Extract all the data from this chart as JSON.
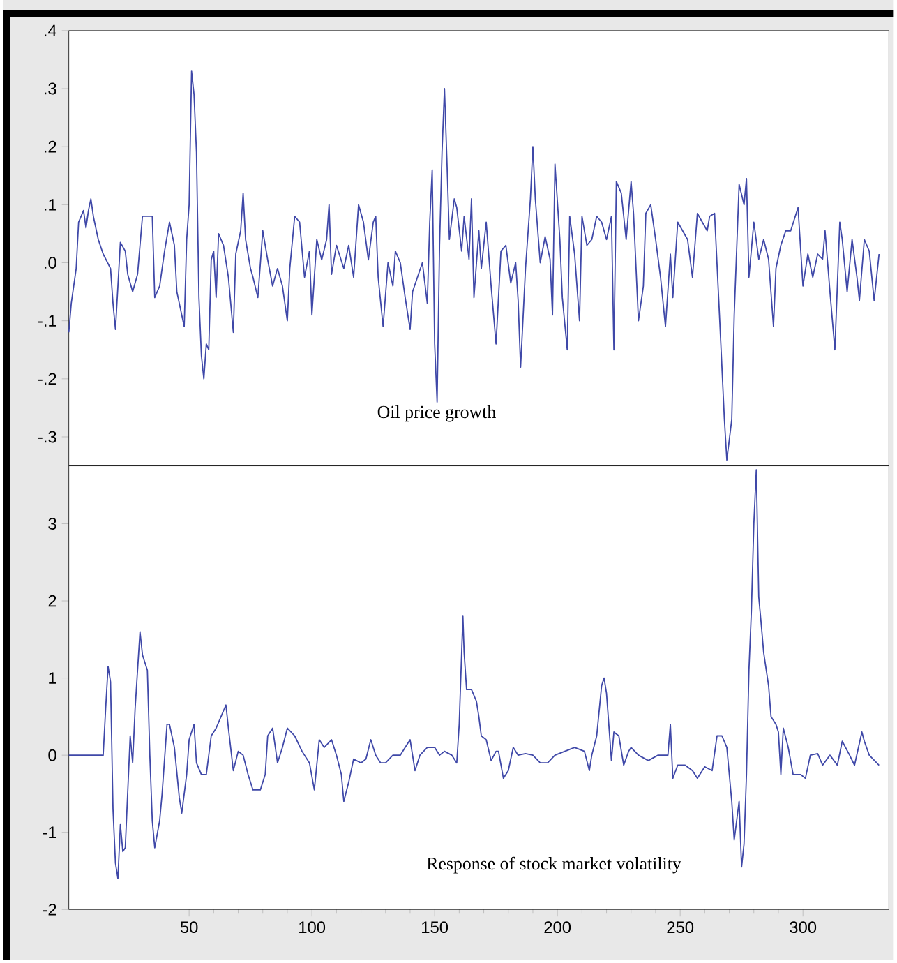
{
  "chart_data": [
    {
      "type": "line",
      "xlim": [
        1,
        335
      ],
      "ylim": [
        -0.35,
        0.4
      ],
      "tick_labels": "y",
      "yticks": [
        {
          "value": 0.4,
          "label": ".4"
        },
        {
          "value": 0.3,
          "label": ".3"
        },
        {
          "value": 0.2,
          "label": ".2"
        },
        {
          "value": 0.1,
          "label": ".1"
        },
        {
          "value": 0.0,
          "label": ".0"
        },
        {
          "value": -0.1,
          "label": "-.1"
        },
        {
          "value": -0.2,
          "label": "-.2"
        },
        {
          "value": -0.3,
          "label": "-.3"
        }
      ],
      "x": [
        1,
        2,
        4,
        5,
        7,
        8,
        9,
        10,
        11,
        13,
        15,
        18,
        19,
        20,
        21,
        22,
        24,
        25,
        27,
        29,
        31,
        33,
        35,
        36,
        38,
        40,
        42,
        44,
        45,
        48,
        49,
        50,
        51,
        52,
        53,
        54,
        55,
        56,
        57,
        58,
        59,
        60,
        61,
        62,
        64,
        66,
        68,
        69,
        71,
        72,
        73,
        75,
        76,
        78,
        80,
        82,
        84,
        86,
        88,
        90,
        91,
        93,
        95,
        97,
        99,
        100,
        102,
        104,
        106,
        107,
        108,
        110,
        113,
        115,
        117,
        119,
        121,
        123,
        125,
        126,
        127,
        129,
        131,
        133,
        134,
        136,
        138,
        140,
        141,
        143,
        145,
        147,
        148,
        149,
        150,
        151,
        152,
        153,
        154,
        155,
        156,
        158,
        159,
        161,
        162,
        164,
        165,
        166,
        168,
        169,
        171,
        173,
        175,
        177,
        179,
        181,
        183,
        184,
        185,
        187,
        189,
        190,
        191,
        193,
        195,
        197,
        198,
        199,
        201,
        202,
        204,
        205,
        207,
        209,
        210,
        212,
        214,
        216,
        218,
        220,
        222,
        223,
        224,
        226,
        228,
        230,
        231,
        233,
        235,
        236,
        238,
        240,
        242,
        244,
        246,
        247,
        249,
        251,
        253,
        255,
        257,
        259,
        261,
        262,
        264,
        266,
        268,
        269,
        271,
        272,
        274,
        276,
        277,
        278,
        280,
        282,
        284,
        286,
        288,
        289,
        291,
        293,
        295,
        298,
        300,
        302,
        304,
        306,
        308,
        309,
        311,
        313,
        315,
        316,
        318,
        320,
        322,
        323,
        325,
        327,
        329,
        331
      ],
      "series": [
        {
          "name": "Oil price growth",
          "color": "#3f48a8",
          "values": [
            -0.12,
            -0.07,
            -0.01,
            0.07,
            0.09,
            0.06,
            0.09,
            0.11,
            0.08,
            0.04,
            0.015,
            -0.01,
            -0.07,
            -0.115,
            -0.04,
            0.035,
            0.02,
            -0.02,
            -0.05,
            -0.02,
            0.08,
            0.08,
            0.08,
            -0.06,
            -0.04,
            0.02,
            0.07,
            0.03,
            -0.05,
            -0.11,
            0.04,
            0.1,
            0.33,
            0.29,
            0.19,
            -0.06,
            -0.16,
            -0.2,
            -0.14,
            -0.15,
            0.005,
            0.02,
            -0.06,
            0.05,
            0.03,
            -0.025,
            -0.12,
            0.015,
            0.055,
            0.12,
            0.04,
            -0.01,
            -0.025,
            -0.06,
            0.055,
            0.005,
            -0.04,
            -0.01,
            -0.04,
            -0.1,
            -0.01,
            0.08,
            0.07,
            -0.025,
            0.02,
            -0.09,
            0.04,
            0.005,
            0.04,
            0.1,
            -0.02,
            0.03,
            -0.01,
            0.03,
            -0.025,
            0.1,
            0.07,
            0.005,
            0.07,
            0.08,
            -0.025,
            -0.11,
            0.0,
            -0.04,
            0.02,
            0.0,
            -0.06,
            -0.115,
            -0.05,
            -0.025,
            0.0,
            -0.07,
            0.07,
            0.16,
            -0.14,
            -0.24,
            0.03,
            0.19,
            0.3,
            0.175,
            0.04,
            0.11,
            0.095,
            0.02,
            0.08,
            0.006,
            0.11,
            -0.06,
            0.055,
            -0.01,
            0.07,
            -0.04,
            -0.14,
            0.02,
            0.03,
            -0.035,
            0.0,
            -0.065,
            -0.18,
            -0.01,
            0.11,
            0.2,
            0.11,
            0.0,
            0.045,
            0.006,
            -0.09,
            0.17,
            0.04,
            -0.06,
            -0.15,
            0.08,
            0.015,
            -0.1,
            0.08,
            0.03,
            0.04,
            0.08,
            0.07,
            0.04,
            0.08,
            -0.15,
            0.14,
            0.12,
            0.04,
            0.14,
            0.085,
            -0.1,
            -0.04,
            0.085,
            0.1,
            0.04,
            -0.025,
            -0.11,
            0.015,
            -0.06,
            0.07,
            0.055,
            0.04,
            -0.025,
            0.085,
            0.07,
            0.055,
            0.08,
            0.085,
            -0.09,
            -0.27,
            -0.34,
            -0.27,
            -0.09,
            0.135,
            0.1,
            0.145,
            -0.025,
            0.07,
            0.006,
            0.04,
            0.006,
            -0.11,
            -0.01,
            0.03,
            0.055,
            0.055,
            0.095,
            -0.04,
            0.015,
            -0.025,
            0.015,
            0.006,
            0.055,
            -0.05,
            -0.15,
            0.07,
            0.04,
            -0.05,
            0.04,
            -0.025,
            -0.065,
            0.04,
            0.02,
            -0.065,
            0.015
          ]
        }
      ]
    },
    {
      "type": "line",
      "xlim": [
        1,
        335
      ],
      "ylim": [
        -2,
        3.75
      ],
      "xticks": [
        50,
        100,
        150,
        200,
        250,
        300
      ],
      "yticks": [
        -2,
        -1,
        0,
        1,
        2,
        3
      ],
      "x": [
        1,
        15,
        16,
        17,
        18,
        19,
        20,
        21,
        22,
        23,
        24,
        26,
        27,
        28,
        30,
        31,
        33,
        34,
        35,
        36,
        38,
        39,
        41,
        42,
        44,
        46,
        47,
        49,
        50,
        52,
        53,
        55,
        57,
        59,
        61,
        63,
        65,
        66,
        68,
        70,
        72,
        74,
        76,
        79,
        81,
        82,
        84,
        86,
        88,
        90,
        93,
        96,
        99,
        101,
        103,
        105,
        108,
        110,
        112,
        113,
        115,
        117,
        120,
        122,
        124,
        126,
        128,
        130,
        133,
        136,
        138,
        140,
        142,
        144,
        147,
        150,
        152,
        154,
        157,
        159,
        160,
        161,
        161.5,
        162,
        163,
        165,
        167,
        168,
        169,
        171,
        173,
        175,
        176,
        178,
        180,
        182,
        184,
        187,
        190,
        193,
        196,
        199,
        203,
        207,
        211,
        213,
        214,
        216,
        218,
        219,
        220,
        222,
        223,
        225,
        227,
        229,
        230,
        233,
        237,
        241,
        245,
        246,
        247,
        249,
        252,
        255,
        257,
        260,
        263,
        265,
        267,
        269,
        271,
        272,
        274,
        275,
        276,
        277,
        278,
        279,
        280,
        281,
        282,
        283,
        284,
        286,
        287,
        289,
        290,
        291,
        292,
        294,
        296,
        299,
        301,
        303,
        306,
        308,
        311,
        314,
        316,
        319,
        321,
        324,
        325,
        327,
        331
      ],
      "series": [
        {
          "name": "Response of stock market volatility",
          "color": "#3f48a8",
          "values": [
            0,
            0,
            0.6,
            1.15,
            0.95,
            -0.7,
            -1.4,
            -1.6,
            -0.9,
            -1.25,
            -1.2,
            0.25,
            -0.1,
            0.6,
            1.6,
            1.3,
            1.1,
            0,
            -0.85,
            -1.2,
            -0.85,
            -0.5,
            0.4,
            0.4,
            0.1,
            -0.55,
            -0.75,
            -0.25,
            0.2,
            0.4,
            -0.1,
            -0.25,
            -0.25,
            0.25,
            0.35,
            0.5,
            0.65,
            0.35,
            -0.2,
            0.05,
            0,
            -0.25,
            -0.45,
            -0.45,
            -0.25,
            0.25,
            0.35,
            -0.1,
            0.1,
            0.35,
            0.25,
            0.05,
            -0.1,
            -0.45,
            0.2,
            0.1,
            0.2,
            0,
            -0.25,
            -0.6,
            -0.35,
            -0.05,
            -0.1,
            -0.05,
            0.2,
            0,
            -0.1,
            -0.1,
            0,
            0,
            0.1,
            0.2,
            -0.2,
            0,
            0.1,
            0.1,
            0,
            0.05,
            0,
            -0.1,
            0.4,
            1.33,
            1.8,
            1.33,
            0.85,
            0.85,
            0.7,
            0.5,
            0.25,
            0.2,
            -0.07,
            0.05,
            0.05,
            -0.3,
            -0.2,
            0.1,
            0,
            0.02,
            0,
            -0.1,
            -0.1,
            0,
            0.05,
            0.1,
            0.05,
            -0.2,
            0,
            0.25,
            0.9,
            1.0,
            0.8,
            -0.07,
            0.3,
            0.25,
            -0.13,
            0.05,
            0.1,
            0,
            -0.07,
            0,
            0,
            0.4,
            -0.3,
            -0.13,
            -0.13,
            -0.2,
            -0.3,
            -0.15,
            -0.2,
            0.25,
            0.25,
            0.1,
            -0.6,
            -1.1,
            -0.6,
            -1.45,
            -1.15,
            -0.25,
            1.1,
            1.87,
            3.0,
            3.7,
            2.05,
            1.7,
            1.33,
            0.9,
            0.5,
            0.4,
            0.3,
            -0.25,
            0.35,
            0.1,
            -0.25,
            -0.25,
            -0.3,
            0,
            0.02,
            -0.13,
            0,
            -0.13,
            0.18,
            0,
            -0.13,
            0.3,
            0.18,
            0,
            -0.13
          ]
        }
      ]
    }
  ]
}
